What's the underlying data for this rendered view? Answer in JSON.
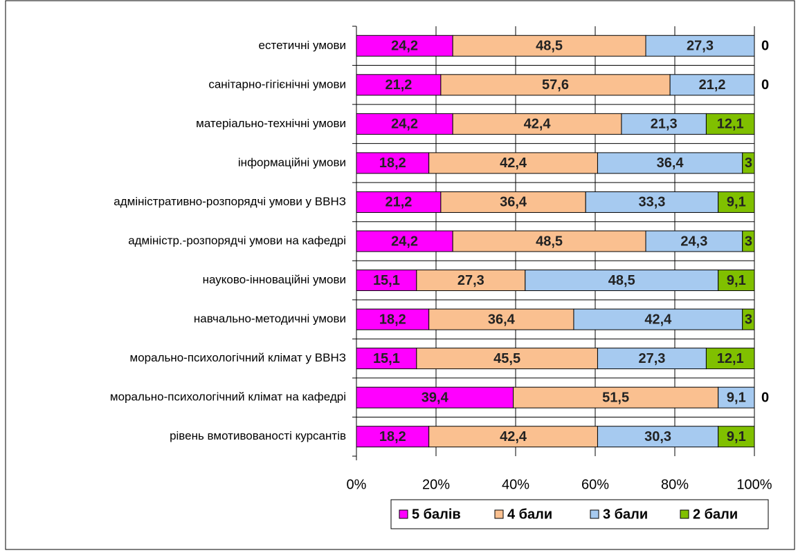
{
  "chart_data": {
    "type": "stacked_barh",
    "categories": [
      "естетичні умови",
      "санітарно-гігієнічні умови",
      "матеріально-технічні умови ",
      "інформаційні умови",
      "адміністративно-розпорядчі умови у ВВНЗ",
      "адміністр.-розпорядчі умови на кафедрі",
      "науково-інноваційні умови",
      "навчально-методичні умови",
      "морально-психологічний клімат у ВВНЗ",
      "морально-психологічний клімат на кафедрі",
      "рівень вмотивованості курсантів"
    ],
    "series": [
      {
        "name": "5 балів",
        "color": "#ff00ff",
        "values": [
          24.2,
          21.2,
          24.2,
          18.2,
          21.2,
          24.2,
          15.1,
          18.2,
          15.1,
          39.4,
          18.2
        ],
        "value_labels": [
          "24,2",
          "21,2",
          "24,2",
          "18,2",
          "21,2",
          "24,2",
          "15,1",
          "18,2",
          "15,1",
          "39,4",
          "18,2"
        ]
      },
      {
        "name": "4 бали",
        "color": "#fac090",
        "values": [
          48.5,
          57.6,
          42.4,
          42.4,
          36.4,
          48.5,
          27.3,
          36.4,
          45.5,
          51.5,
          42.4
        ],
        "value_labels": [
          "48,5",
          "57,6",
          "42,4",
          "42,4",
          "36,4",
          "48,5",
          "27,3",
          "36,4",
          "45,5",
          "51,5",
          "42,4"
        ]
      },
      {
        "name": "3 бали",
        "color": "#a6caf0",
        "values": [
          27.3,
          21.2,
          21.3,
          36.4,
          33.3,
          24.3,
          48.5,
          42.4,
          27.3,
          9.1,
          30.3
        ],
        "value_labels": [
          "27,3",
          "21,2",
          "21,3",
          "36,4",
          "33,3",
          "24,3",
          "48,5",
          "42,4",
          "27,3",
          "9,1",
          "30,3"
        ]
      },
      {
        "name": "2 бали",
        "color": "#80c000",
        "values": [
          0,
          0,
          12.1,
          3,
          9.1,
          3,
          9.1,
          3,
          12.1,
          0,
          9.1
        ],
        "value_labels": [
          "0",
          "0",
          "12,1",
          "3",
          "9,1",
          "3",
          "9,1",
          "3",
          "12,1",
          "0",
          "9,1"
        ]
      }
    ],
    "xlim": [
      0,
      100
    ],
    "xticks": [
      {
        "value": 0,
        "label": "0%"
      },
      {
        "value": 20,
        "label": "20%"
      },
      {
        "value": 40,
        "label": "40%"
      },
      {
        "value": 60,
        "label": "60%"
      },
      {
        "value": 80,
        "label": "80%"
      },
      {
        "value": 100,
        "label": "100%"
      }
    ],
    "grid": true,
    "legend": "bottom"
  }
}
